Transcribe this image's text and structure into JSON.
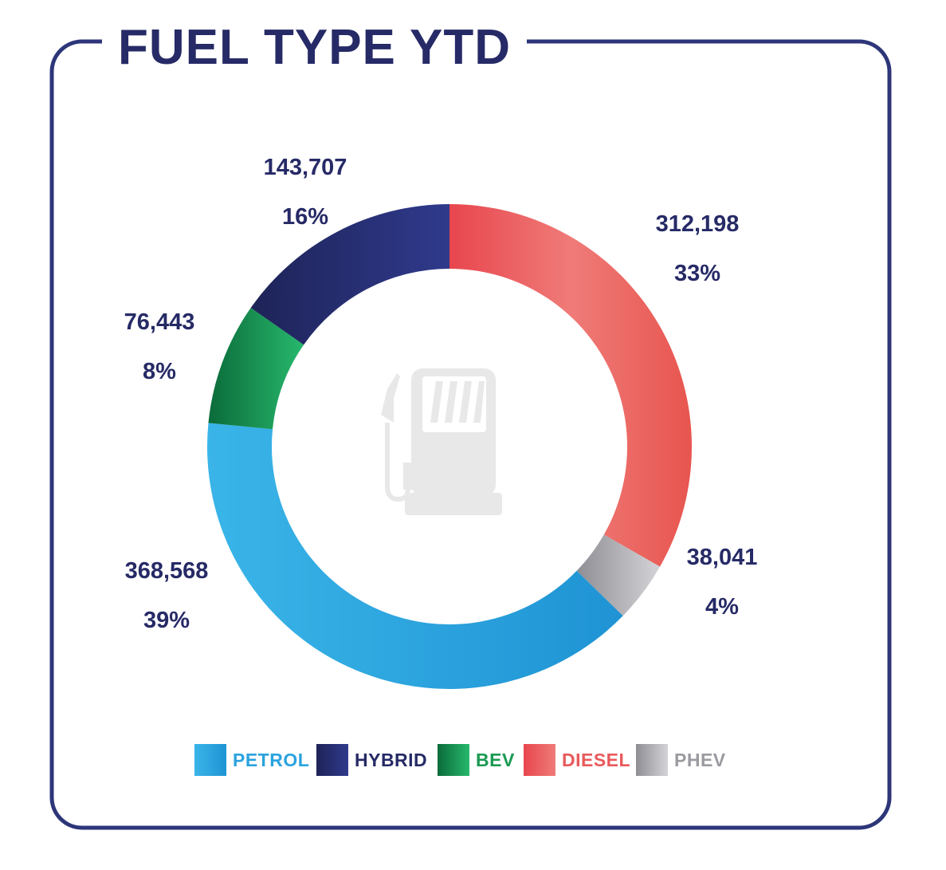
{
  "title": "FUEL TYPE YTD",
  "chart_data": {
    "type": "pie",
    "title": "FUEL TYPE YTD",
    "categories": [
      "PETROL",
      "HYBRID",
      "BEV",
      "DIESEL",
      "PHEV"
    ],
    "series": [
      {
        "values": [
          368568,
          143707,
          76443,
          312198,
          38041
        ]
      }
    ],
    "percent_labels": [
      "39%",
      "16%",
      "8%",
      "33%",
      "4%"
    ],
    "value_labels": [
      "368,568",
      "143,707",
      "76,443",
      "312,198",
      "38,041"
    ],
    "legend_position": "bottom",
    "colors": {
      "PETROL": "#2aa3df",
      "HYBRID": "#262a66",
      "BEV": "#1a9a52",
      "DIESEL": "#e9595b",
      "PHEV": "#adadb2"
    }
  },
  "icons": {
    "center": "fuel-pump-icon"
  }
}
